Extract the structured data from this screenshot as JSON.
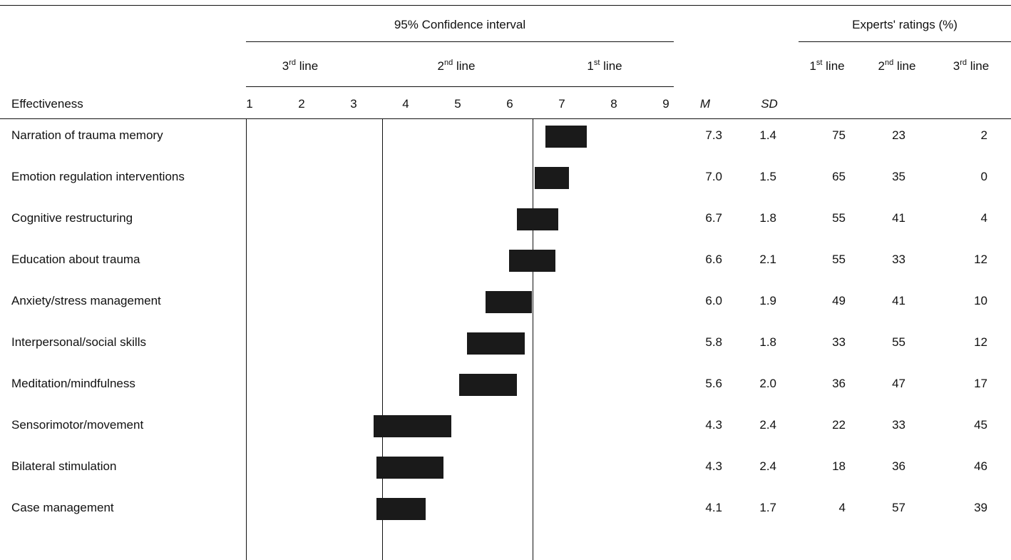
{
  "header": {
    "ci_title": "95% Confidence interval",
    "ratings_title": "Experts' ratings (%)",
    "line_bands": [
      {
        "base": "3",
        "sup": "rd",
        "word": "line"
      },
      {
        "base": "2",
        "sup": "nd",
        "word": "line"
      },
      {
        "base": "1",
        "sup": "st",
        "word": "line"
      }
    ],
    "ratings_cols": [
      {
        "base": "1",
        "sup": "st",
        "word": "line"
      },
      {
        "base": "2",
        "sup": "nd",
        "word": "line"
      },
      {
        "base": "3",
        "sup": "rd",
        "word": "line"
      }
    ],
    "row_label": "Effectiveness",
    "scale": [
      "1",
      "2",
      "3",
      "4",
      "5",
      "6",
      "7",
      "8",
      "9"
    ],
    "m_label": "M",
    "sd_label": "SD"
  },
  "chart_data": {
    "type": "table",
    "x_range": [
      1,
      9
    ],
    "cutoffs": [
      3.5,
      6.5
    ],
    "rows": [
      {
        "name": "Narration of trauma memory",
        "ci": [
          6.75,
          7.55
        ],
        "m": "7.3",
        "sd": "1.4",
        "r1": "75",
        "r2": "23",
        "r3": "2"
      },
      {
        "name": "Emotion regulation interventions",
        "ci": [
          6.55,
          7.2
        ],
        "m": "7.0",
        "sd": "1.5",
        "r1": "65",
        "r2": "35",
        "r3": "0"
      },
      {
        "name": "Cognitive restructuring",
        "ci": [
          6.2,
          7.0
        ],
        "m": "6.7",
        "sd": "1.8",
        "r1": "55",
        "r2": "41",
        "r3": "4"
      },
      {
        "name": "Education about trauma",
        "ci": [
          6.05,
          6.95
        ],
        "m": "6.6",
        "sd": "2.1",
        "r1": "55",
        "r2": "33",
        "r3": "12"
      },
      {
        "name": "Anxiety/stress management",
        "ci": [
          5.6,
          6.5
        ],
        "m": "6.0",
        "sd": "1.9",
        "r1": "49",
        "r2": "41",
        "r3": "10"
      },
      {
        "name": "Interpersonal/social skills",
        "ci": [
          5.25,
          6.35
        ],
        "m": "5.8",
        "sd": "1.8",
        "r1": "33",
        "r2": "55",
        "r3": "12"
      },
      {
        "name": "Meditation/mindfulness",
        "ci": [
          5.1,
          6.2
        ],
        "m": "5.6",
        "sd": "2.0",
        "r1": "36",
        "r2": "47",
        "r3": "17"
      },
      {
        "name": "Sensorimotor/movement",
        "ci": [
          3.45,
          4.95
        ],
        "m": "4.3",
        "sd": "2.4",
        "r1": "22",
        "r2": "33",
        "r3": "45"
      },
      {
        "name": "Bilateral stimulation",
        "ci": [
          3.5,
          4.8
        ],
        "m": "4.3",
        "sd": "2.4",
        "r1": "18",
        "r2": "36",
        "r3": "46"
      },
      {
        "name": "Case management",
        "ci": [
          3.5,
          4.45
        ],
        "m": "4.1",
        "sd": "1.7",
        "r1": "4",
        "r2": "57",
        "r3": "39"
      }
    ]
  }
}
